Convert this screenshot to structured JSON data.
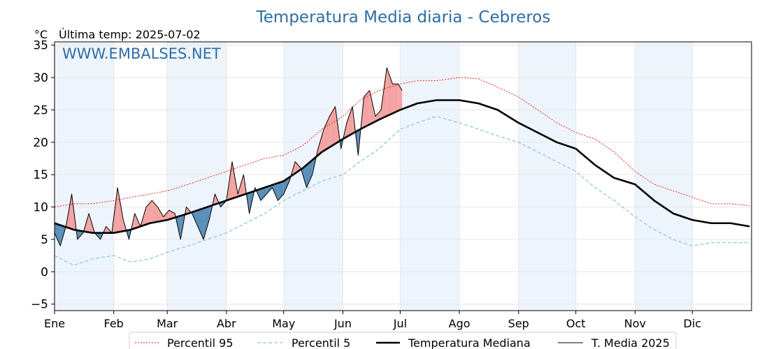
{
  "chart_data": {
    "type": "line",
    "title": "Temperatura Media diaria - Cebreros",
    "ylabel": "°C",
    "last_temp_label": "Última temp: 2025-07-02",
    "watermark": "WWW.EMBALSES.NET",
    "ylim": [
      -6,
      35.5
    ],
    "xlim": [
      0,
      365
    ],
    "y_ticks": [
      -5,
      0,
      5,
      10,
      15,
      20,
      25,
      30,
      35
    ],
    "y_tick_labels": [
      "−5",
      "0",
      "5",
      "10",
      "15",
      "20",
      "25",
      "30",
      "35"
    ],
    "x_ticks": [
      0,
      31,
      59,
      90,
      120,
      151,
      181,
      212,
      243,
      273,
      304,
      334
    ],
    "x_tick_labels": [
      "Ene",
      "Feb",
      "Mar",
      "Abr",
      "May",
      "Jun",
      "Jul",
      "Ago",
      "Sep",
      "Oct",
      "Nov",
      "Dic"
    ],
    "grid": true,
    "alternate_month_shading": true,
    "legend_position": "bottom",
    "colors": {
      "p95": "#e8201a",
      "p5": "#8fc8dc",
      "median": "#000000",
      "current": "#000000",
      "above_fill": "#f4a3a3",
      "below_fill": "#5a8fb8",
      "shade": "#eef4fb",
      "title": "#2e6da4"
    },
    "series": [
      {
        "name": "Percentil 95",
        "style": "dotted",
        "x": [
          0,
          10,
          20,
          31,
          40,
          50,
          59,
          70,
          80,
          90,
          100,
          110,
          120,
          130,
          140,
          151,
          160,
          170,
          181,
          190,
          200,
          212,
          222,
          232,
          243,
          253,
          263,
          273,
          283,
          293,
          304,
          314,
          324,
          334,
          344,
          354,
          364
        ],
        "values": [
          10,
          10.5,
          10.5,
          11,
          11.5,
          12,
          12.5,
          13.5,
          14.5,
          15.5,
          16.5,
          17.5,
          18,
          19.5,
          22,
          24,
          26.5,
          28,
          29,
          29.5,
          29.5,
          30,
          29.8,
          28.5,
          27,
          25,
          23,
          21.5,
          20.5,
          18.5,
          15.5,
          13.5,
          12.5,
          11.5,
          10.5,
          10.5,
          10.2
        ]
      },
      {
        "name": "Percentil 5",
        "style": "dashed",
        "x": [
          0,
          10,
          20,
          31,
          40,
          50,
          59,
          70,
          80,
          90,
          100,
          110,
          120,
          130,
          140,
          151,
          160,
          170,
          181,
          190,
          200,
          212,
          222,
          232,
          243,
          253,
          263,
          273,
          283,
          293,
          304,
          314,
          324,
          334,
          344,
          354,
          364
        ],
        "values": [
          2.5,
          1,
          2,
          2.5,
          1.5,
          2,
          3,
          4,
          5,
          6,
          7.5,
          9,
          11,
          12.5,
          14,
          15,
          17,
          19,
          22,
          23,
          24,
          23,
          22,
          21,
          20,
          18.5,
          17,
          15.5,
          13,
          11,
          8.5,
          6.5,
          5,
          4,
          4.5,
          4.5,
          4.5
        ]
      },
      {
        "name": "Temperatura Mediana",
        "style": "solid-thick",
        "x": [
          0,
          10,
          20,
          31,
          40,
          50,
          59,
          70,
          80,
          90,
          100,
          110,
          120,
          130,
          140,
          151,
          160,
          170,
          181,
          190,
          200,
          212,
          222,
          232,
          243,
          253,
          263,
          273,
          283,
          293,
          304,
          314,
          324,
          334,
          344,
          354,
          364
        ],
        "values": [
          7.5,
          6.5,
          6,
          6,
          6.5,
          7.5,
          8,
          9,
          10,
          11,
          12,
          13,
          14,
          16,
          18.5,
          20.5,
          22,
          23.5,
          25,
          26,
          26.5,
          26.5,
          26,
          25,
          23,
          21.5,
          20,
          19,
          16.5,
          14.5,
          13.5,
          11,
          9,
          8,
          7.5,
          7.5,
          7
        ]
      },
      {
        "name": "T. Media 2025",
        "style": "solid-thin",
        "x": [
          0,
          3,
          6,
          9,
          12,
          15,
          18,
          21,
          24,
          27,
          30,
          33,
          36,
          39,
          42,
          45,
          48,
          51,
          54,
          57,
          60,
          63,
          66,
          69,
          72,
          75,
          78,
          81,
          84,
          87,
          90,
          93,
          96,
          99,
          102,
          105,
          108,
          111,
          114,
          117,
          120,
          123,
          126,
          129,
          132,
          135,
          138,
          141,
          144,
          147,
          150,
          153,
          156,
          159,
          162,
          165,
          168,
          171,
          174,
          177,
          180,
          182
        ],
        "values": [
          6,
          4,
          7,
          12,
          5,
          6,
          9,
          6,
          5,
          7,
          6,
          13,
          8,
          5,
          9,
          7,
          10,
          11,
          10,
          8.5,
          9.5,
          9,
          5,
          10,
          9,
          7,
          5,
          8,
          12,
          10,
          11,
          17,
          12,
          15,
          9,
          13,
          11,
          12,
          13,
          11,
          12,
          14,
          17,
          16,
          13,
          15,
          19,
          22,
          24,
          25.5,
          19,
          23,
          25.5,
          18,
          27,
          28,
          24,
          25,
          31.5,
          29,
          29,
          28
        ]
      }
    ]
  }
}
